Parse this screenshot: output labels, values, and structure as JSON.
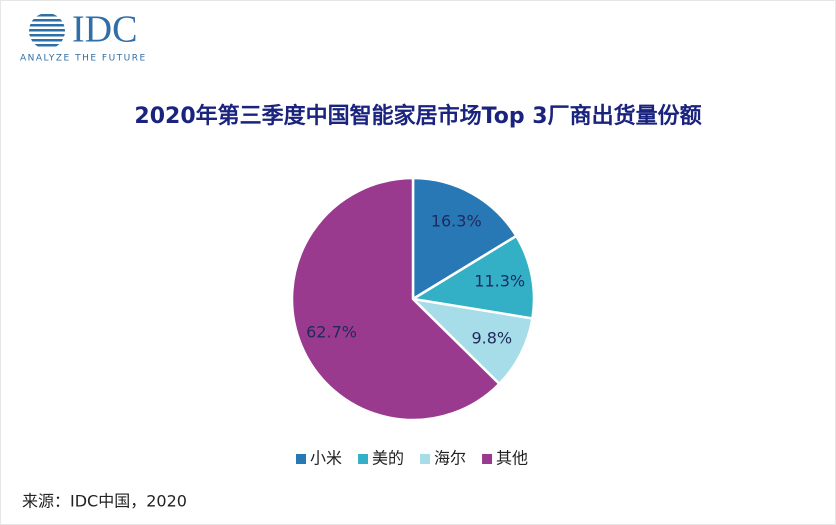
{
  "logo": {
    "text": "IDC",
    "tagline": "ANALYZE THE FUTURE"
  },
  "chart_data": {
    "type": "pie",
    "title": "2020年第三季度中国智能家居市场Top 3厂商出货量份额",
    "categories": [
      "小米",
      "美的",
      "海尔",
      "其他"
    ],
    "values": [
      16.3,
      11.3,
      9.8,
      62.7
    ],
    "value_labels": [
      "16.3%",
      "11.3%",
      "9.8%",
      "62.7%"
    ],
    "colors": [
      "#2878b5",
      "#33b0c6",
      "#a6dde9",
      "#9a3a8f"
    ],
    "legend": "bottom"
  },
  "source": "来源：IDC中国，2020"
}
